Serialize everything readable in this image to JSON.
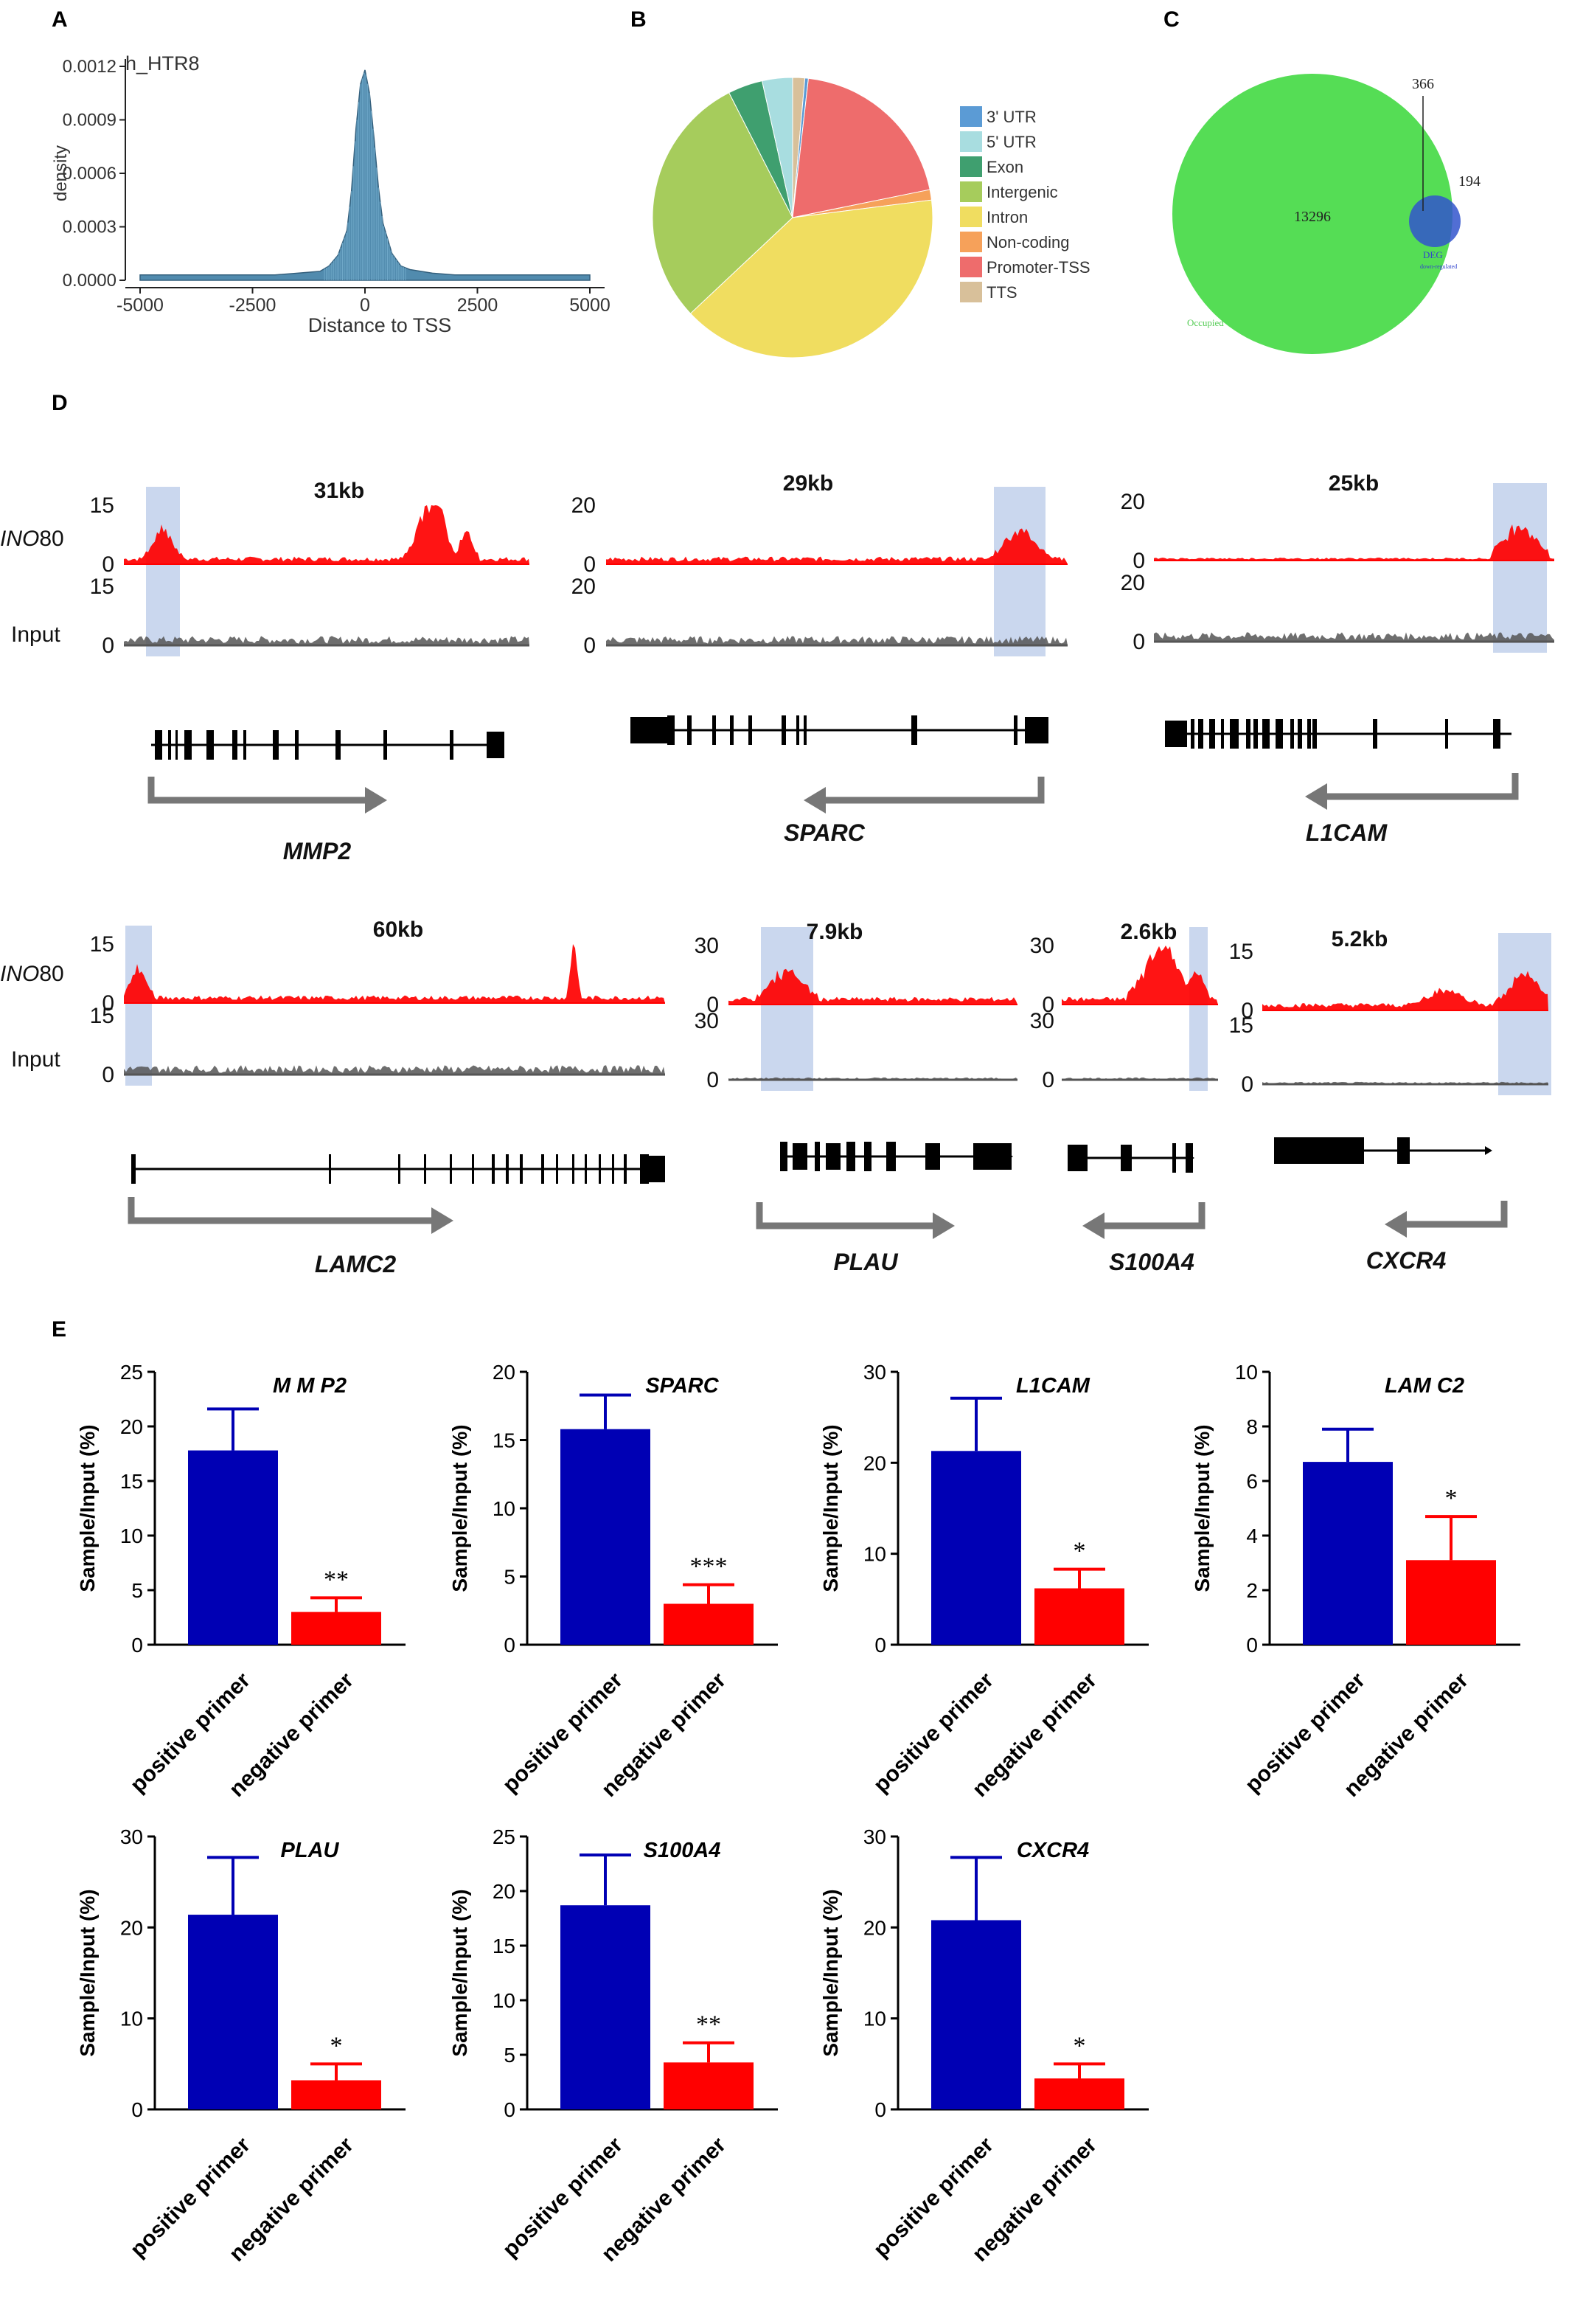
{
  "panels": {
    "a": "A",
    "b": "B",
    "c": "C",
    "d": "D",
    "e": "E"
  },
  "colors": {
    "peak": "#ff0000",
    "input": "#555555",
    "highlight": "#b8c9e8",
    "pos_bar": "#0000b4",
    "neg_bar": "#ff0000",
    "venn_occupied": "#55dd55",
    "venn_deg": "#3355cc",
    "hist": "#3f7fa6"
  },
  "chart_data": [
    {
      "id": "A",
      "type": "area",
      "title": "h_HTR8",
      "xlabel": "Distance to TSS",
      "ylabel": "density",
      "xlim": [
        -5000,
        5000
      ],
      "ylim": [
        0,
        0.0012
      ],
      "xticks": [
        -5000,
        -2500,
        0,
        2500,
        5000
      ],
      "yticks": [
        0.0,
        0.0003,
        0.0006,
        0.0009,
        0.0012
      ],
      "ytick_labels": [
        "0.0000",
        "0.0003",
        "0.0006",
        "0.0009",
        "0.0012"
      ],
      "x": [
        -5000,
        -4000,
        -3000,
        -2000,
        -1500,
        -1000,
        -800,
        -600,
        -400,
        -300,
        -200,
        -100,
        0,
        100,
        200,
        300,
        400,
        600,
        800,
        1000,
        1500,
        2000,
        3000,
        4000,
        5000
      ],
      "y": [
        3e-05,
        3e-05,
        3e-05,
        3e-05,
        4e-05,
        5e-05,
        8e-05,
        0.00014,
        0.00028,
        0.0005,
        0.00085,
        0.0011,
        0.00118,
        0.00105,
        0.0008,
        0.00052,
        0.00032,
        0.00015,
        8e-05,
        6e-05,
        4e-05,
        3e-05,
        3e-05,
        3e-05,
        3e-05
      ]
    },
    {
      "id": "B",
      "type": "pie",
      "slices": [
        {
          "label": "3' UTR",
          "value": 0.4,
          "color": "#5b9bd5"
        },
        {
          "label": "5' UTR",
          "value": 3.5,
          "color": "#a8dde0"
        },
        {
          "label": "Exon",
          "value": 4.0,
          "color": "#3f9f6f"
        },
        {
          "label": "Intergenic",
          "value": 29.5,
          "color": "#a6cc5c"
        },
        {
          "label": "Intron",
          "value": 40.0,
          "color": "#f0dd60"
        },
        {
          "label": "Non-coding",
          "value": 1.2,
          "color": "#f6a15a"
        },
        {
          "label": "Promoter-TSS",
          "value": 20.0,
          "color": "#ee6c6c"
        },
        {
          "label": "TTS",
          "value": 1.4,
          "color": "#d8c09a"
        }
      ]
    },
    {
      "id": "C",
      "type": "venn",
      "sets": [
        {
          "name": "Occupied",
          "only": "13296"
        },
        {
          "name": "DEG",
          "subname": "down-regulated",
          "only": "194"
        }
      ],
      "overlap": "366"
    },
    {
      "id": "D",
      "type": "genome_tracks",
      "track_labels": {
        "ino80_italic": "INO",
        "ino80_rest": "80",
        "input": "Input"
      },
      "loci": [
        {
          "gene": "MMP2",
          "span": "31kb",
          "ino_max": "15",
          "input_max": "15",
          "zero": "0",
          "direction": "right"
        },
        {
          "gene": "SPARC",
          "span": "29kb",
          "ino_max": "20",
          "input_max": "20",
          "zero": "0",
          "direction": "left"
        },
        {
          "gene": "L1CAM",
          "span": "25kb",
          "ino_max": "20",
          "input_max": "20",
          "zero": "0",
          "direction": "left"
        },
        {
          "gene": "LAMC2",
          "span": "60kb",
          "ino_max": "15",
          "input_max": "15",
          "zero": "0",
          "direction": "right"
        },
        {
          "gene": "PLAU",
          "span": "7.9kb",
          "ino_max": "30",
          "input_max": "30",
          "zero": "0",
          "direction": "right"
        },
        {
          "gene": "S100A4",
          "span": "2.6kb",
          "ino_max": "30",
          "input_max": "30",
          "zero": "0",
          "direction": "left"
        },
        {
          "gene": "CXCR4",
          "span": "5.2kb",
          "ino_max": "15",
          "input_max": "15",
          "zero": "0",
          "direction": "left"
        }
      ]
    },
    {
      "id": "E",
      "type": "bar",
      "ylabel": "Sample/Input (%)",
      "categories": [
        "positive primer",
        "negative primer"
      ],
      "plots": [
        {
          "gene": "M M P2",
          "ylim": [
            0,
            25
          ],
          "yticks": [
            0,
            5,
            10,
            15,
            20,
            25
          ],
          "values": [
            17.8,
            3.0
          ],
          "errors": [
            3.8,
            1.3
          ],
          "sig": "**"
        },
        {
          "gene": "SPARC",
          "ylim": [
            0,
            20
          ],
          "yticks": [
            0,
            5,
            10,
            15,
            20
          ],
          "values": [
            15.8,
            3.0
          ],
          "errors": [
            2.5,
            1.4
          ],
          "sig": "***"
        },
        {
          "gene": "L1CAM",
          "ylim": [
            0,
            30
          ],
          "yticks": [
            0,
            10,
            20,
            30
          ],
          "values": [
            21.3,
            6.2
          ],
          "errors": [
            5.8,
            2.1
          ],
          "sig": "*"
        },
        {
          "gene": "LAM C2",
          "ylim": [
            0,
            10
          ],
          "yticks": [
            0,
            2,
            4,
            6,
            8,
            10
          ],
          "values": [
            6.7,
            3.1
          ],
          "errors": [
            1.2,
            1.6
          ],
          "sig": "*"
        },
        {
          "gene": "PLAU",
          "ylim": [
            0,
            30
          ],
          "yticks": [
            0,
            10,
            20,
            30
          ],
          "values": [
            21.4,
            3.2
          ],
          "errors": [
            6.3,
            1.8
          ],
          "sig": "*"
        },
        {
          "gene": "S100A4",
          "ylim": [
            0,
            25
          ],
          "yticks": [
            0,
            5,
            10,
            15,
            20,
            25
          ],
          "values": [
            18.7,
            4.3
          ],
          "errors": [
            4.6,
            1.8
          ],
          "sig": "**"
        },
        {
          "gene": "CXCR4",
          "ylim": [
            0,
            30
          ],
          "yticks": [
            0,
            10,
            20,
            30
          ],
          "values": [
            20.8,
            3.4
          ],
          "errors": [
            6.9,
            1.6
          ],
          "sig": "*"
        }
      ]
    }
  ]
}
